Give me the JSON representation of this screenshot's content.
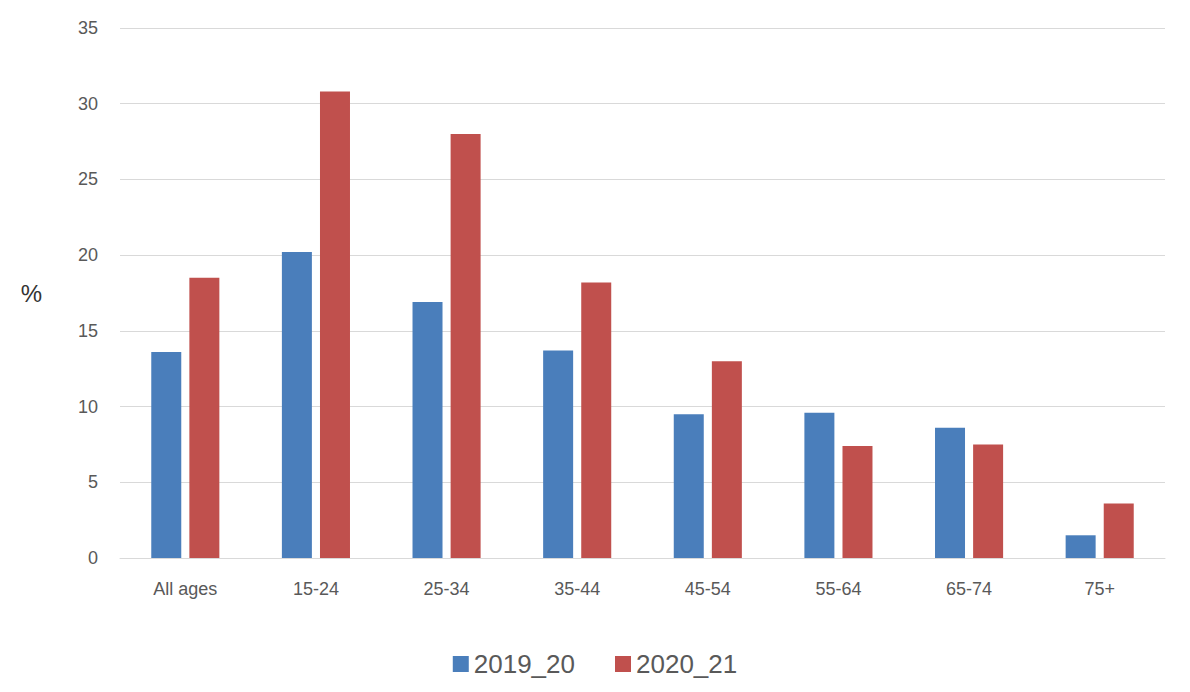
{
  "chart_data": {
    "type": "bar",
    "y_label": "%",
    "categories": [
      "All ages",
      "15-24",
      "25-34",
      "35-44",
      "45-54",
      "55-64",
      "65-74",
      "75+"
    ],
    "series": [
      {
        "name": "2019_20",
        "color": "#4a7ebb",
        "values": [
          13.6,
          20.2,
          16.9,
          13.7,
          9.5,
          9.6,
          8.6,
          1.5
        ]
      },
      {
        "name": "2020_21",
        "color": "#c0504d",
        "values": [
          18.5,
          30.8,
          28.0,
          18.2,
          13.0,
          7.4,
          7.5,
          3.6
        ]
      }
    ],
    "ylim": [
      0,
      35
    ],
    "yticks": [
      0,
      5,
      10,
      15,
      20,
      25,
      30,
      35
    ],
    "grid": true,
    "legend": "bottom"
  }
}
